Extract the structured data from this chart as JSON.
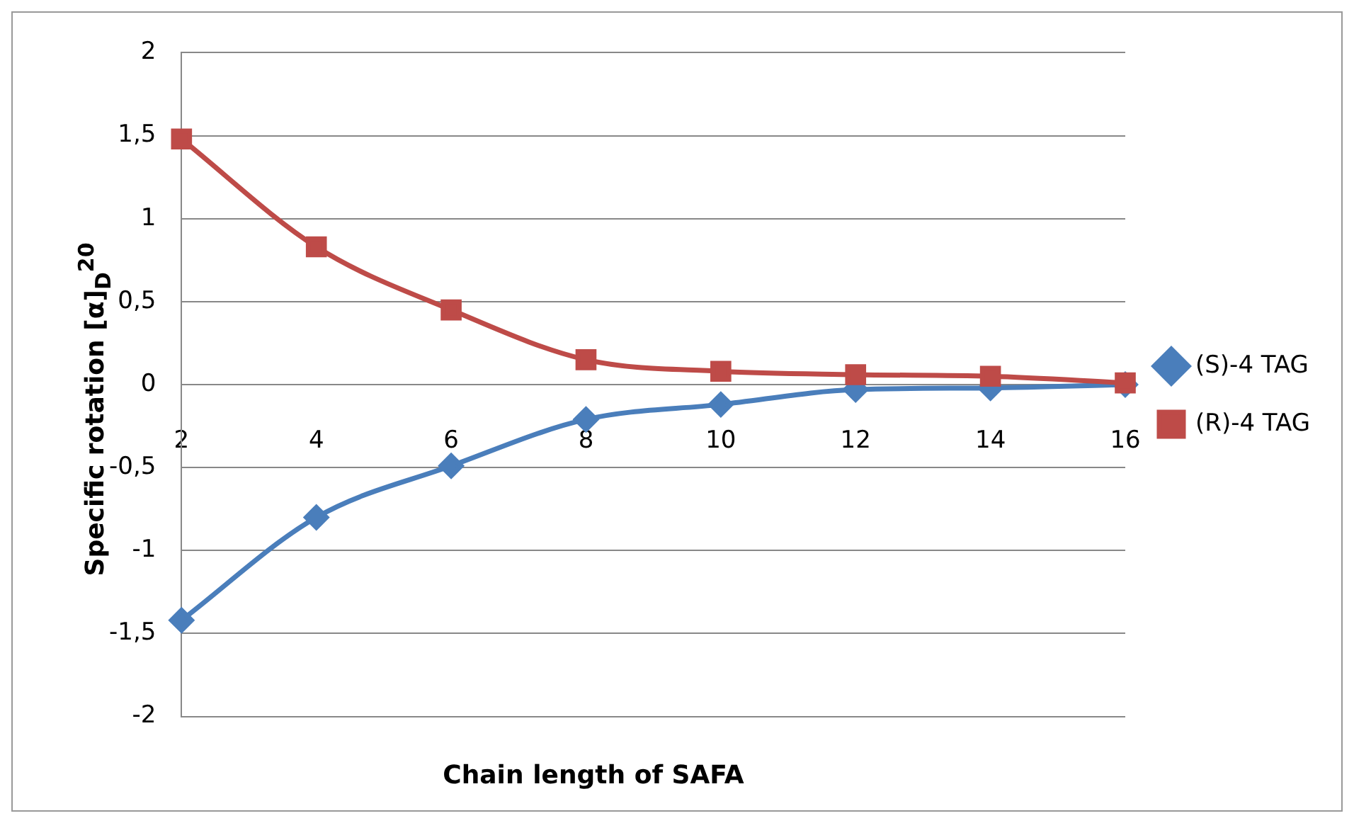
{
  "chart_data": {
    "type": "line",
    "xlabel": "Chain length of SAFA",
    "ylabel": "Specific rotation [α]$_{D}$$^{20}$",
    "categories": [
      "2",
      "4",
      "6",
      "8",
      "10",
      "12",
      "14",
      "16"
    ],
    "series": [
      {
        "name": "(S)-4 TAG",
        "color": "#4a7ebb",
        "marker": "diamond",
        "values": [
          -1.42,
          -0.8,
          -0.49,
          -0.21,
          -0.12,
          -0.03,
          -0.02,
          0
        ]
      },
      {
        "name": "(R)-4 TAG",
        "color": "#be4b48",
        "marker": "square",
        "values": [
          1.48,
          0.83,
          0.45,
          0.15,
          0.08,
          0.06,
          0.05,
          0.01
        ]
      }
    ],
    "ylim": [
      -2,
      2
    ],
    "yticks": [
      {
        "value": -2,
        "label": "-2"
      },
      {
        "value": -1.5,
        "label": "-1,5"
      },
      {
        "value": -1,
        "label": "-1"
      },
      {
        "value": -0.5,
        "label": "-0,5"
      },
      {
        "value": 0,
        "label": "0"
      },
      {
        "value": 0.5,
        "label": "0,5"
      },
      {
        "value": 1,
        "label": "1"
      },
      {
        "value": 1.5,
        "label": "1,5"
      },
      {
        "value": 2,
        "label": "2"
      }
    ],
    "grid": "y",
    "legend": "right",
    "line_style": "solid"
  }
}
